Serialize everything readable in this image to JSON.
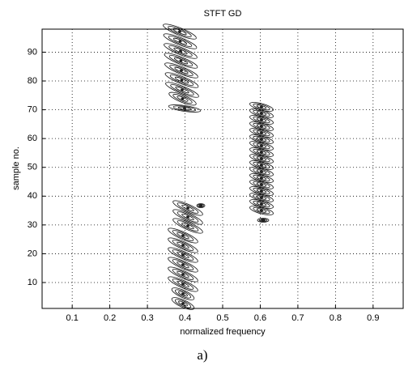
{
  "chart_data": {
    "type": "contour",
    "title": "STFT GD",
    "x_label": "normalized frequency",
    "y_label": "sample no.",
    "xlim": [
      0.02,
      0.98
    ],
    "xticks": [
      0.1,
      0.2,
      0.3,
      0.4,
      0.5,
      0.6,
      0.7,
      0.8,
      0.9
    ],
    "ylim": [
      1,
      98
    ],
    "yticks": [
      10,
      20,
      30,
      40,
      50,
      60,
      70,
      80,
      90
    ],
    "grid": true,
    "caption": "a)"
  }
}
